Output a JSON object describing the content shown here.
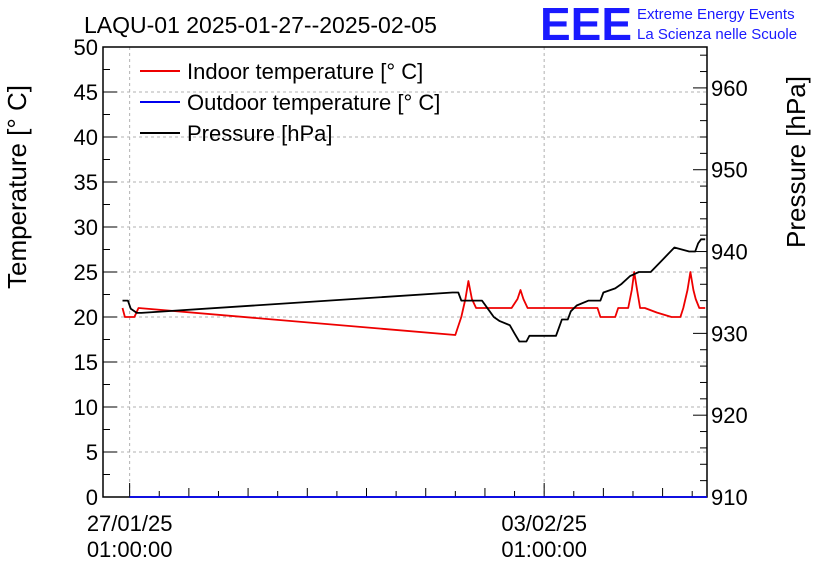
{
  "chart_data": {
    "type": "line",
    "title": "LAQU-01 2025-01-27--2025-02-05",
    "ylabel_left": "Temperature [° C]",
    "ylabel_right": "Pressure [hPa]",
    "ylim_left": [
      0,
      50
    ],
    "ylim_right": [
      910,
      965
    ],
    "xlim_days": [
      -0.45,
      9.75
    ],
    "left_ticks": [
      0,
      5,
      10,
      15,
      20,
      25,
      30,
      35,
      40,
      45,
      50
    ],
    "right_ticks": [
      910,
      920,
      930,
      940,
      950,
      960
    ],
    "x_ticks": [
      {
        "day": 0,
        "line1": "27/01/25",
        "line2": "01:00:00"
      },
      {
        "day": 7,
        "line1": "03/02/25",
        "line2": "01:00:00"
      }
    ],
    "grid": true,
    "legend_position": "top-left",
    "series": [
      {
        "name": "Indoor temperature [° C]",
        "axis": "left",
        "color": "#ee0000",
        "points": [
          [
            -0.12,
            21
          ],
          [
            -0.08,
            20
          ],
          [
            0.08,
            20
          ],
          [
            0.15,
            21
          ],
          [
            5.5,
            18
          ],
          [
            5.6,
            20
          ],
          [
            5.67,
            22
          ],
          [
            5.72,
            24
          ],
          [
            5.78,
            22
          ],
          [
            5.85,
            21
          ],
          [
            6.3,
            21
          ],
          [
            6.45,
            21
          ],
          [
            6.55,
            22
          ],
          [
            6.6,
            23
          ],
          [
            6.65,
            22
          ],
          [
            6.72,
            21
          ],
          [
            7.9,
            21
          ],
          [
            7.95,
            20
          ],
          [
            8.2,
            20
          ],
          [
            8.25,
            21
          ],
          [
            8.42,
            21
          ],
          [
            8.48,
            23
          ],
          [
            8.52,
            25
          ],
          [
            8.57,
            23
          ],
          [
            8.62,
            21
          ],
          [
            8.7,
            21
          ],
          [
            8.9,
            20.5
          ],
          [
            9.15,
            20
          ],
          [
            9.3,
            20
          ],
          [
            9.35,
            21
          ],
          [
            9.42,
            23
          ],
          [
            9.47,
            25
          ],
          [
            9.52,
            23
          ],
          [
            9.56,
            22
          ],
          [
            9.62,
            21
          ],
          [
            9.72,
            21
          ]
        ]
      },
      {
        "name": "Outdoor temperature [° C]",
        "axis": "left",
        "color": "#0000ee",
        "points": [
          [
            0,
            0
          ],
          [
            9.75,
            0
          ]
        ]
      },
      {
        "name": "Pressure [hPa]",
        "axis": "right",
        "color": "#000000",
        "points": [
          [
            -0.12,
            934
          ],
          [
            -0.03,
            934
          ],
          [
            0.02,
            933
          ],
          [
            0.12,
            932.5
          ],
          [
            0.2,
            932.5
          ],
          [
            5.45,
            935
          ],
          [
            5.55,
            935
          ],
          [
            5.6,
            934
          ],
          [
            5.95,
            934
          ],
          [
            6.05,
            933
          ],
          [
            6.15,
            932
          ],
          [
            6.25,
            931.5
          ],
          [
            6.42,
            931
          ],
          [
            6.5,
            930
          ],
          [
            6.58,
            929
          ],
          [
            6.7,
            929
          ],
          [
            6.75,
            929.7
          ],
          [
            7.2,
            929.7
          ],
          [
            7.25,
            930.7
          ],
          [
            7.3,
            931.7
          ],
          [
            7.4,
            931.7
          ],
          [
            7.45,
            932.7
          ],
          [
            7.55,
            933.4
          ],
          [
            7.75,
            934
          ],
          [
            7.95,
            934
          ],
          [
            8.0,
            935
          ],
          [
            8.2,
            935.5
          ],
          [
            8.3,
            936
          ],
          [
            8.45,
            937
          ],
          [
            8.6,
            937.5
          ],
          [
            8.8,
            937.5
          ],
          [
            9.0,
            939
          ],
          [
            9.2,
            940.5
          ],
          [
            9.45,
            940
          ],
          [
            9.55,
            940
          ],
          [
            9.6,
            941
          ],
          [
            9.65,
            941.5
          ],
          [
            9.72,
            941.5
          ]
        ]
      }
    ]
  },
  "logo": {
    "mark": "EEE",
    "line1": "Extreme Energy Events",
    "line2": "La Scienza nelle Scuole"
  }
}
